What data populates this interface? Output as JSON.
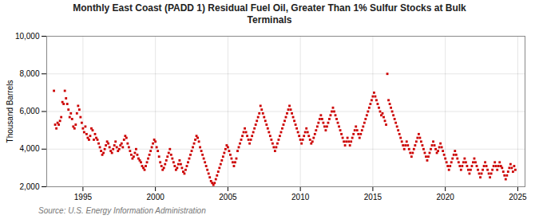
{
  "chart_data": {
    "type": "scatter",
    "title": "Monthly East Coast (PADD 1) Residual Fuel Oil, Greater Than 1% Sulfur Stocks at Bulk\nTerminals",
    "ylabel": "Thousand Barrels",
    "source": "Source: U.S. Energy Information Administration",
    "color": "#CC0000",
    "marker": "square",
    "grid": true,
    "xlim": [
      1992.5,
      2025.5
    ],
    "xticks": [
      1995,
      2000,
      2005,
      2010,
      2015,
      2020,
      2025
    ],
    "ylim": [
      2000,
      10000
    ],
    "yticks": [
      {
        "value": 2000,
        "label": "2,000"
      },
      {
        "value": 4000,
        "label": "4,000"
      },
      {
        "value": 6000,
        "label": "6,000"
      },
      {
        "value": 8000,
        "label": "8,000"
      },
      {
        "value": 10000,
        "label": "10,000"
      }
    ],
    "x": [
      1993.0,
      1993.083,
      1993.167,
      1993.25,
      1993.333,
      1993.417,
      1993.5,
      1993.583,
      1993.667,
      1993.75,
      1993.833,
      1993.917,
      1994.0,
      1994.083,
      1994.167,
      1994.25,
      1994.333,
      1994.417,
      1994.5,
      1994.583,
      1994.667,
      1994.75,
      1994.833,
      1994.917,
      1995.0,
      1995.083,
      1995.167,
      1995.25,
      1995.333,
      1995.417,
      1995.5,
      1995.583,
      1995.667,
      1995.75,
      1995.833,
      1995.917,
      1996.0,
      1996.083,
      1996.167,
      1996.25,
      1996.333,
      1996.417,
      1996.5,
      1996.583,
      1996.667,
      1996.75,
      1996.833,
      1996.917,
      1997.0,
      1997.083,
      1997.167,
      1997.25,
      1997.333,
      1997.417,
      1997.5,
      1997.583,
      1997.667,
      1997.75,
      1997.833,
      1997.917,
      1998.0,
      1998.083,
      1998.167,
      1998.25,
      1998.333,
      1998.417,
      1998.5,
      1998.583,
      1998.667,
      1998.75,
      1998.833,
      1998.917,
      1999.0,
      1999.083,
      1999.167,
      1999.25,
      1999.333,
      1999.417,
      1999.5,
      1999.583,
      1999.667,
      1999.75,
      1999.833,
      1999.917,
      2000.0,
      2000.083,
      2000.167,
      2000.25,
      2000.333,
      2000.417,
      2000.5,
      2000.583,
      2000.667,
      2000.75,
      2000.833,
      2000.917,
      2001.0,
      2001.083,
      2001.167,
      2001.25,
      2001.333,
      2001.417,
      2001.5,
      2001.583,
      2001.667,
      2001.75,
      2001.833,
      2001.917,
      2002.0,
      2002.083,
      2002.167,
      2002.25,
      2002.333,
      2002.417,
      2002.5,
      2002.583,
      2002.667,
      2002.75,
      2002.833,
      2002.917,
      2003.0,
      2003.083,
      2003.167,
      2003.25,
      2003.333,
      2003.417,
      2003.5,
      2003.583,
      2003.667,
      2003.75,
      2003.833,
      2003.917,
      2004.0,
      2004.083,
      2004.167,
      2004.25,
      2004.333,
      2004.417,
      2004.5,
      2004.583,
      2004.667,
      2004.75,
      2004.833,
      2004.917,
      2005.0,
      2005.083,
      2005.167,
      2005.25,
      2005.333,
      2005.417,
      2005.5,
      2005.583,
      2005.667,
      2005.75,
      2005.833,
      2005.917,
      2006.0,
      2006.083,
      2006.167,
      2006.25,
      2006.333,
      2006.417,
      2006.5,
      2006.583,
      2006.667,
      2006.75,
      2006.833,
      2006.917,
      2007.0,
      2007.083,
      2007.167,
      2007.25,
      2007.333,
      2007.417,
      2007.5,
      2007.583,
      2007.667,
      2007.75,
      2007.833,
      2007.917,
      2008.0,
      2008.083,
      2008.167,
      2008.25,
      2008.333,
      2008.417,
      2008.5,
      2008.583,
      2008.667,
      2008.75,
      2008.833,
      2008.917,
      2009.0,
      2009.083,
      2009.167,
      2009.25,
      2009.333,
      2009.417,
      2009.5,
      2009.583,
      2009.667,
      2009.75,
      2009.833,
      2009.917,
      2010.0,
      2010.083,
      2010.167,
      2010.25,
      2010.333,
      2010.417,
      2010.5,
      2010.583,
      2010.667,
      2010.75,
      2010.833,
      2010.917,
      2011.0,
      2011.083,
      2011.167,
      2011.25,
      2011.333,
      2011.417,
      2011.5,
      2011.583,
      2011.667,
      2011.75,
      2011.833,
      2011.917,
      2012.0,
      2012.083,
      2012.167,
      2012.25,
      2012.333,
      2012.417,
      2012.5,
      2012.583,
      2012.667,
      2012.75,
      2012.833,
      2012.917,
      2013.0,
      2013.083,
      2013.167,
      2013.25,
      2013.333,
      2013.417,
      2013.5,
      2013.583,
      2013.667,
      2013.75,
      2013.833,
      2013.917,
      2014.0,
      2014.083,
      2014.167,
      2014.25,
      2014.333,
      2014.417,
      2014.5,
      2014.583,
      2014.667,
      2014.75,
      2014.833,
      2014.917,
      2015.0,
      2015.083,
      2015.167,
      2015.25,
      2015.333,
      2015.417,
      2015.5,
      2015.583,
      2015.667,
      2015.75,
      2015.833,
      2015.917,
      2016.0,
      2016.083,
      2016.167,
      2016.25,
      2016.333,
      2016.417,
      2016.5,
      2016.583,
      2016.667,
      2016.75,
      2016.833,
      2016.917,
      2017.0,
      2017.083,
      2017.167,
      2017.25,
      2017.333,
      2017.417,
      2017.5,
      2017.583,
      2017.667,
      2017.75,
      2017.833,
      2017.917,
      2018.0,
      2018.083,
      2018.167,
      2018.25,
      2018.333,
      2018.417,
      2018.5,
      2018.583,
      2018.667,
      2018.75,
      2018.833,
      2018.917,
      2019.0,
      2019.083,
      2019.167,
      2019.25,
      2019.333,
      2019.417,
      2019.5,
      2019.583,
      2019.667,
      2019.75,
      2019.833,
      2019.917,
      2020.0,
      2020.083,
      2020.167,
      2020.25,
      2020.333,
      2020.417,
      2020.5,
      2020.583,
      2020.667,
      2020.75,
      2020.833,
      2020.917,
      2021.0,
      2021.083,
      2021.167,
      2021.25,
      2021.333,
      2021.417,
      2021.5,
      2021.583,
      2021.667,
      2021.75,
      2021.833,
      2021.917,
      2022.0,
      2022.083,
      2022.167,
      2022.25,
      2022.333,
      2022.417,
      2022.5,
      2022.583,
      2022.667,
      2022.75,
      2022.833,
      2022.917,
      2023.0,
      2023.083,
      2023.167,
      2023.25,
      2023.333,
      2023.417,
      2023.5,
      2023.583,
      2023.667,
      2023.75,
      2023.833,
      2023.917,
      2024.0,
      2024.083,
      2024.167,
      2024.25,
      2024.333,
      2024.417,
      2024.5,
      2024.583,
      2024.667,
      2024.75,
      2024.833
    ],
    "values": [
      7100,
      5300,
      5100,
      5400,
      5300,
      5500,
      5700,
      6500,
      6400,
      7100,
      6700,
      6400,
      6100,
      5700,
      5900,
      5600,
      5200,
      5100,
      5300,
      5900,
      6300,
      6100,
      5700,
      5400,
      5100,
      4900,
      5200,
      4800,
      4600,
      4500,
      4700,
      5100,
      5000,
      4500,
      4800,
      4600,
      4500,
      4300,
      4100,
      3900,
      3700,
      3800,
      4000,
      4200,
      4400,
      4300,
      4100,
      3900,
      3800,
      4000,
      4200,
      4400,
      4100,
      3900,
      4000,
      4200,
      4300,
      4100,
      4500,
      4700,
      4600,
      4300,
      4100,
      3900,
      3700,
      3500,
      3600,
      3800,
      4000,
      3700,
      3500,
      3400,
      3300,
      3100,
      3000,
      2900,
      3100,
      3300,
      3500,
      3700,
      3900,
      4100,
      4300,
      4500,
      4400,
      4100,
      3900,
      3600,
      3300,
      3100,
      2900,
      3000,
      3200,
      3400,
      3600,
      3800,
      4000,
      3700,
      3500,
      3300,
      3100,
      2900,
      3000,
      3200,
      3400,
      3200,
      3000,
      2800,
      2700,
      2900,
      3100,
      3300,
      3500,
      3700,
      3900,
      4100,
      4300,
      4500,
      4700,
      4600,
      4400,
      4100,
      3900,
      3700,
      3500,
      3300,
      3100,
      2900,
      2700,
      2500,
      2300,
      2200,
      2100,
      2200,
      2400,
      2600,
      2800,
      3000,
      3200,
      3400,
      3600,
      3800,
      4000,
      4200,
      4100,
      3900,
      3700,
      3500,
      3300,
      3100,
      3300,
      3500,
      3900,
      4100,
      4300,
      4500,
      4700,
      4900,
      5100,
      4900,
      4700,
      4500,
      4300,
      4500,
      4700,
      4900,
      5100,
      5300,
      5500,
      5700,
      5900,
      6300,
      6100,
      5900,
      5700,
      5500,
      5300,
      5100,
      4900,
      4700,
      4500,
      4300,
      4100,
      3900,
      4100,
      4300,
      4500,
      4700,
      4900,
      5100,
      5300,
      5500,
      5700,
      5900,
      6100,
      6300,
      6100,
      5900,
      5700,
      5500,
      5300,
      5100,
      4900,
      4700,
      4500,
      4300,
      4500,
      4700,
      4900,
      5100,
      4900,
      4700,
      4500,
      4300,
      4400,
      4600,
      4800,
      5000,
      5200,
      5400,
      5600,
      5800,
      5600,
      5400,
      5200,
      5000,
      5200,
      5400,
      5600,
      5800,
      6000,
      6200,
      6000,
      5800,
      5600,
      5400,
      5200,
      5000,
      4800,
      4600,
      4400,
      4200,
      4400,
      4600,
      4400,
      4200,
      4400,
      4600,
      4800,
      5000,
      5200,
      5000,
      4800,
      4600,
      4800,
      5000,
      5200,
      5400,
      5600,
      5800,
      6000,
      6200,
      6400,
      6600,
      6800,
      7000,
      6800,
      6600,
      6400,
      6200,
      6000,
      5800,
      5900,
      5700,
      5500,
      5300,
      8000,
      6600,
      6400,
      6200,
      6000,
      5800,
      5600,
      5400,
      5200,
      5000,
      4800,
      4600,
      4400,
      4200,
      4000,
      4200,
      4400,
      4200,
      4000,
      3800,
      3600,
      3800,
      4000,
      4200,
      4400,
      4600,
      4800,
      4600,
      4400,
      4200,
      4000,
      3800,
      3600,
      3400,
      3600,
      3800,
      4000,
      4200,
      4400,
      4200,
      4000,
      3800,
      3900,
      4100,
      4300,
      4100,
      3900,
      3700,
      3500,
      3300,
      3100,
      2900,
      3100,
      3300,
      3500,
      3700,
      3900,
      3700,
      3500,
      3300,
      3100,
      2900,
      3100,
      3300,
      3500,
      3300,
      3100,
      2900,
      2700,
      2900,
      3100,
      3300,
      3500,
      3300,
      3100,
      2900,
      2700,
      2500,
      2700,
      2900,
      3100,
      3300,
      3100,
      2900,
      2700,
      2500,
      2700,
      2900,
      3100,
      3300,
      3100,
      2900,
      3100,
      3300,
      3100,
      3000,
      2800,
      2600,
      2400,
      2600,
      2800,
      3000,
      3200,
      3000,
      2800,
      3100,
      2900
    ]
  }
}
